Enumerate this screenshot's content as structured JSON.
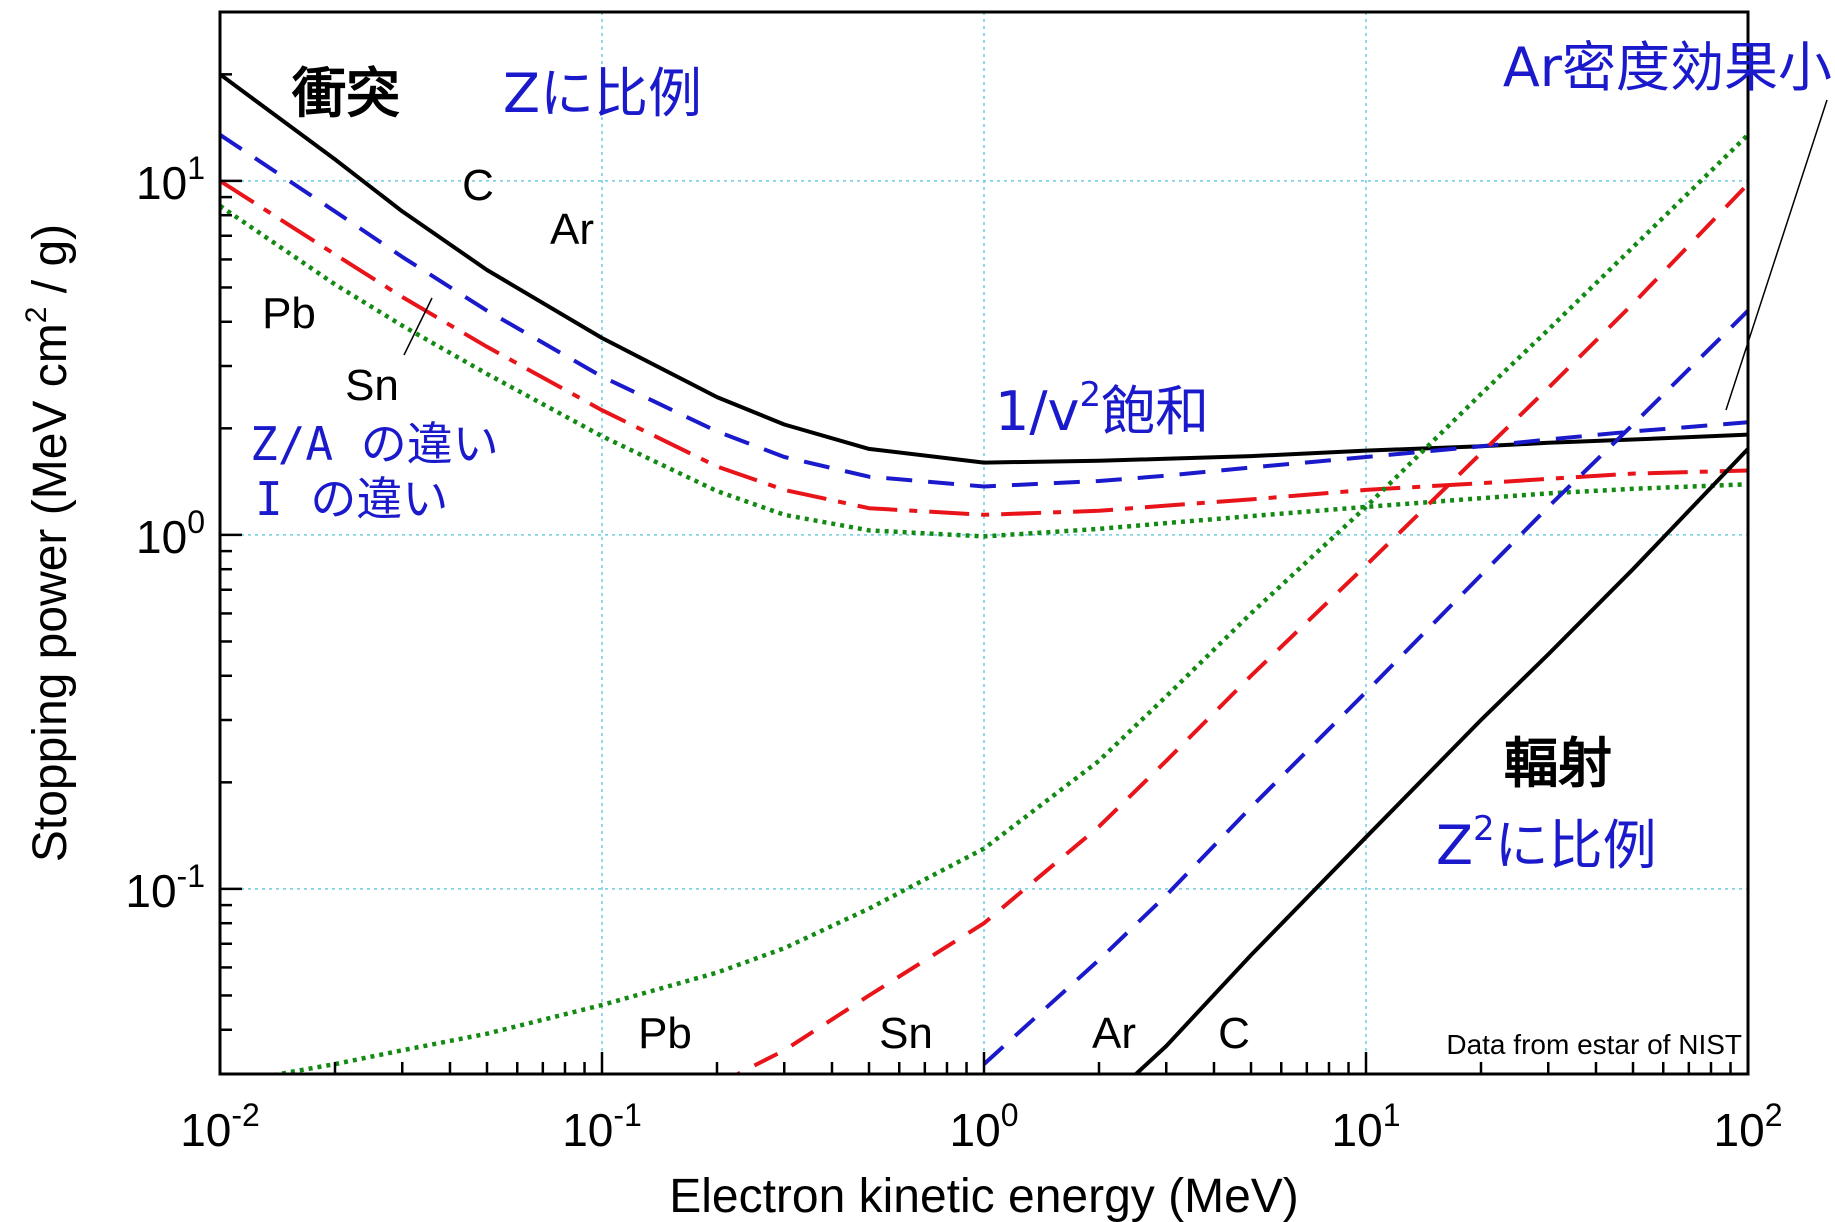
{
  "chart_data": {
    "type": "line",
    "xlabel": "Electron kinetic energy (MeV)",
    "ylabel": "Stopping power (MeV cm^2 / g)",
    "x_scale": "log",
    "y_scale": "log",
    "xlim": [
      0.01,
      100
    ],
    "ylim": [
      0.03,
      30
    ],
    "grid": true,
    "x_ticks": [
      {
        "base": "10",
        "exp": "-2",
        "value": 0.01
      },
      {
        "base": "10",
        "exp": "-1",
        "value": 0.1
      },
      {
        "base": "10",
        "exp": "0",
        "value": 1
      },
      {
        "base": "10",
        "exp": "1",
        "value": 10
      },
      {
        "base": "10",
        "exp": "2",
        "value": 100
      }
    ],
    "y_ticks": [
      {
        "base": "10",
        "exp": "-1",
        "value": 0.1
      },
      {
        "base": "10",
        "exp": "0",
        "value": 1
      },
      {
        "base": "10",
        "exp": "1",
        "value": 10
      }
    ],
    "x": [
      0.01,
      0.02,
      0.03,
      0.05,
      0.1,
      0.2,
      0.3,
      0.5,
      1,
      2,
      3,
      5,
      10,
      20,
      30,
      50,
      100
    ],
    "series": [
      {
        "name": "C",
        "kind": "collision",
        "color": "#000000",
        "dash": "solid",
        "values": [
          20.0,
          11.5,
          8.2,
          5.6,
          3.6,
          2.45,
          2.05,
          1.75,
          1.6,
          1.62,
          1.64,
          1.67,
          1.73,
          1.78,
          1.82,
          1.86,
          1.92
        ]
      },
      {
        "name": "Ar",
        "kind": "collision",
        "color": "#1a1acc",
        "dash": "dash",
        "values": [
          13.5,
          8.2,
          6.1,
          4.3,
          2.8,
          1.96,
          1.66,
          1.46,
          1.37,
          1.42,
          1.47,
          1.55,
          1.66,
          1.78,
          1.86,
          1.96,
          2.08
        ]
      },
      {
        "name": "Sn",
        "kind": "collision",
        "color": "#e8141a",
        "dash": "dashdot",
        "values": [
          10.0,
          6.2,
          4.7,
          3.4,
          2.25,
          1.56,
          1.34,
          1.19,
          1.14,
          1.17,
          1.21,
          1.26,
          1.34,
          1.4,
          1.44,
          1.49,
          1.52
        ]
      },
      {
        "name": "Pb",
        "kind": "collision",
        "color": "#138a13",
        "dash": "dot",
        "values": [
          8.5,
          5.1,
          3.9,
          2.85,
          1.9,
          1.33,
          1.14,
          1.03,
          0.99,
          1.04,
          1.08,
          1.13,
          1.2,
          1.27,
          1.31,
          1.35,
          1.39
        ]
      },
      {
        "name": "Pb",
        "kind": "radiative",
        "color": "#138a13",
        "dash": "dot",
        "values": [
          0.028,
          0.032,
          0.035,
          0.039,
          0.047,
          0.058,
          0.068,
          0.088,
          0.13,
          0.23,
          0.35,
          0.6,
          1.2,
          2.5,
          3.8,
          6.5,
          13.5
        ]
      },
      {
        "name": "Sn",
        "kind": "radiative",
        "color": "#e8141a",
        "dash": "dash",
        "values": [
          null,
          null,
          null,
          null,
          null,
          0.028,
          0.035,
          0.05,
          0.08,
          0.15,
          0.23,
          0.4,
          0.82,
          1.7,
          2.6,
          4.5,
          9.8
        ]
      },
      {
        "name": "Ar",
        "kind": "radiative",
        "color": "#1a1acc",
        "dash": "dash",
        "values": [
          null,
          null,
          null,
          null,
          null,
          null,
          null,
          null,
          0.032,
          0.063,
          0.096,
          0.17,
          0.36,
          0.77,
          1.2,
          2.05,
          4.3
        ]
      },
      {
        "name": "C",
        "kind": "radiative",
        "color": "#000000",
        "dash": "solid",
        "values": [
          null,
          null,
          null,
          null,
          null,
          null,
          null,
          null,
          null,
          0.024,
          0.036,
          0.065,
          0.14,
          0.3,
          0.46,
          0.8,
          1.75
        ]
      }
    ],
    "curve_labels": {
      "collision": [
        "C",
        "Ar",
        "Pb",
        "Sn"
      ],
      "radiative": [
        "Pb",
        "Sn",
        "Ar",
        "C"
      ]
    },
    "annotations": {
      "collision_title": "衝突",
      "z_prop": "Zに比例",
      "ar_density": "Ar密度効果小",
      "inv_v2_pre": "1/v",
      "inv_v2_sup": "2",
      "inv_v2_post": "飽和",
      "z_over_a": "Z/A の違い",
      "i_diff": "I の違い",
      "radiative_title": "輻射",
      "z2_pre": "Z",
      "z2_sup": "2",
      "z2_post": "に比例",
      "credit": "Data from estar of NIST"
    }
  }
}
